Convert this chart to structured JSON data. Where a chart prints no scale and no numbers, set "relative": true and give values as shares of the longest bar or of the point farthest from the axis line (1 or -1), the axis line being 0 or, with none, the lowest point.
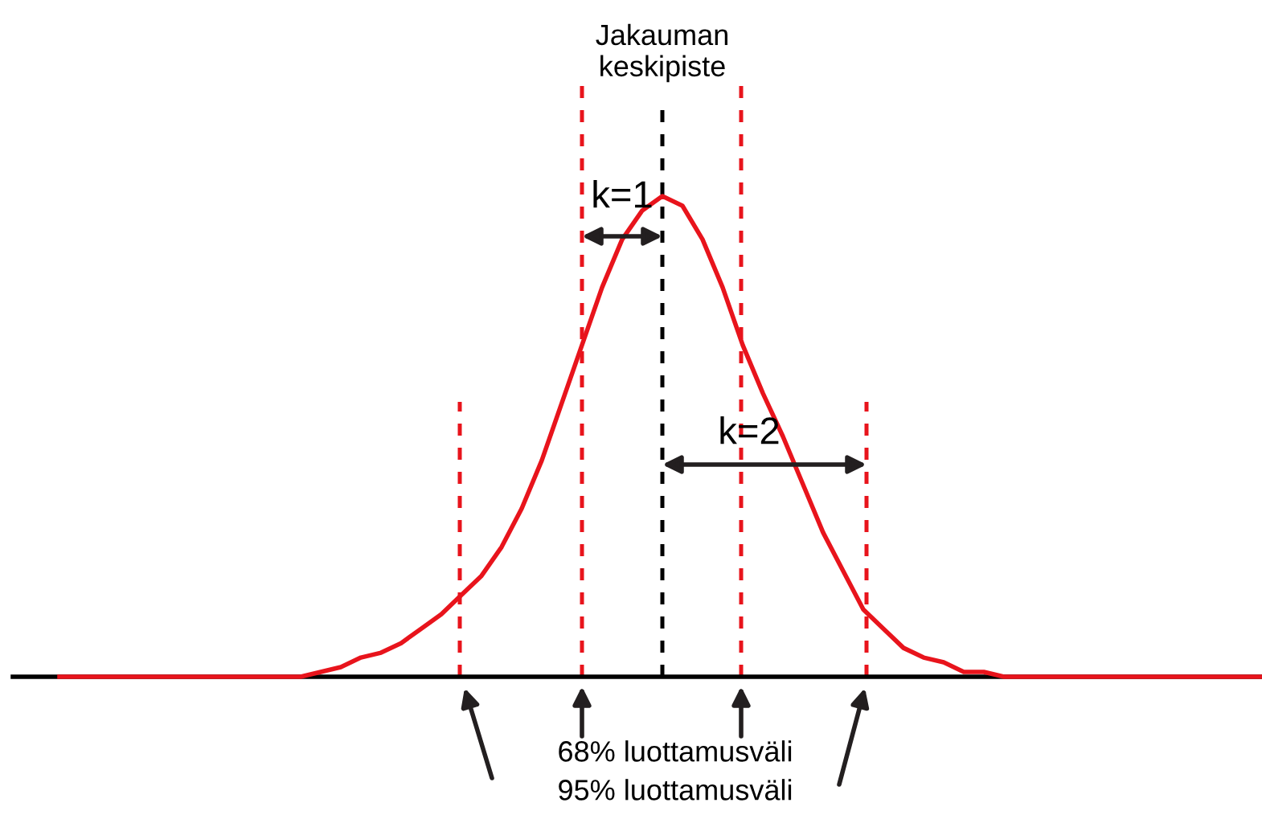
{
  "chart_data": {
    "type": "line",
    "relative": true,
    "tick_labels": false,
    "categories": [
      null,
      null,
      null,
      null,
      null,
      null,
      null,
      null,
      null,
      null,
      null,
      null,
      null,
      null,
      null,
      null,
      null,
      null,
      null,
      null,
      null,
      null,
      null,
      null,
      null,
      null,
      null,
      null,
      null,
      null,
      null,
      null,
      null,
      null,
      null,
      null,
      null,
      null,
      null,
      null,
      null,
      null,
      null,
      null,
      null,
      null,
      null,
      null,
      null,
      null,
      null,
      null,
      null,
      null,
      null,
      null,
      null,
      null,
      null,
      null,
      null
    ],
    "series": [
      {
        "color": "#e8141c",
        "values": [
          0,
          0,
          0,
          0,
          0,
          0,
          0,
          0,
          0,
          0,
          0,
          0,
          0,
          0.01,
          0.02,
          0.04,
          0.05,
          0.07,
          0.1,
          0.13,
          0.17,
          0.21,
          0.27,
          0.35,
          0.45,
          0.57,
          0.69,
          0.81,
          0.91,
          0.97,
          1.0,
          0.98,
          0.91,
          0.81,
          0.69,
          0.59,
          0.5,
          0.4,
          0.3,
          0.22,
          0.14,
          0.1,
          0.06,
          0.04,
          0.03,
          0.01,
          0.01,
          0,
          0,
          0,
          0,
          0,
          0,
          0,
          0,
          0,
          0,
          0,
          0,
          0,
          0
        ]
      }
    ],
    "annotations": [
      "k=1",
      "k=2",
      "68% luottamusväli",
      "95% luottamusväli",
      "Jakauman\nkeskipiste"
    ]
  }
}
